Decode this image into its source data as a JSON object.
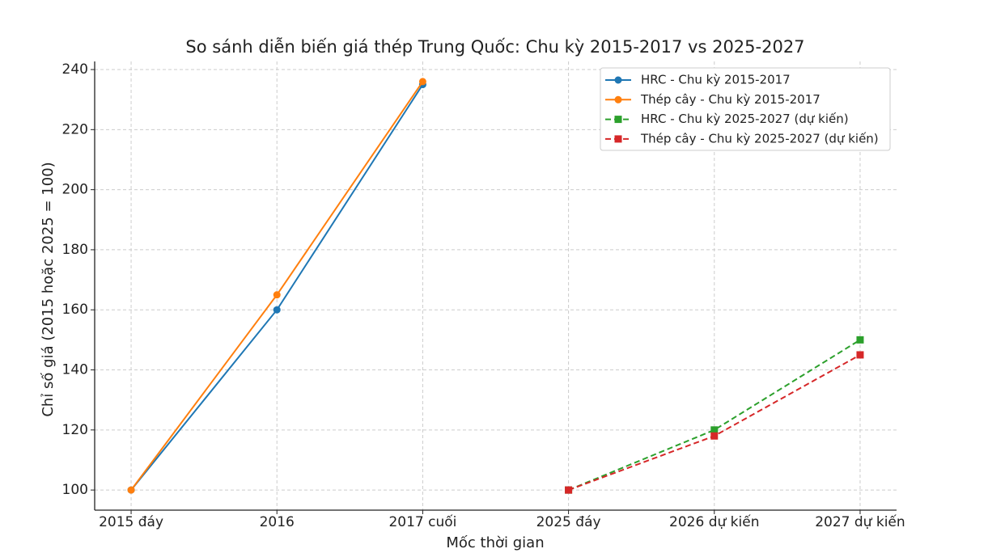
{
  "chart_data": {
    "type": "line",
    "title": "So sánh diễn biến giá thép Trung Quốc: Chu kỳ 2015-2017 vs 2025-2027",
    "x_label": "Mốc thời gian",
    "y_label": "Chỉ số giá (2015 hoặc 2025 = 100)",
    "categories": [
      "2015 đáy",
      "2016",
      "2017 cuối",
      "2025 đáy",
      "2026 dự kiến",
      "2027 dự kiến"
    ],
    "series": [
      {
        "name": "HRC - Chu kỳ 2015-2017",
        "color": "#1f77b4",
        "linestyle": "solid",
        "marker": "circle",
        "values": [
          100,
          160,
          235,
          null,
          null,
          null
        ]
      },
      {
        "name": "Thép cây - Chu kỳ 2015-2017",
        "color": "#ff7f0e",
        "linestyle": "solid",
        "marker": "circle",
        "values": [
          100,
          165,
          236,
          null,
          null,
          null
        ]
      },
      {
        "name": "HRC - Chu kỳ 2025-2027 (dự kiến)",
        "color": "#2ca02c",
        "linestyle": "dashed",
        "marker": "square",
        "values": [
          null,
          null,
          null,
          100,
          120,
          150
        ]
      },
      {
        "name": "Thép cây - Chu kỳ 2025-2027 (dự kiến)",
        "color": "#d62728",
        "linestyle": "dashed",
        "marker": "square",
        "values": [
          null,
          null,
          null,
          100,
          118,
          145
        ]
      }
    ],
    "ylim": [
      93.3,
      242.7
    ],
    "yticks": [
      100,
      120,
      140,
      160,
      180,
      200,
      220,
      240
    ],
    "grid": true,
    "legend": "upper right"
  }
}
